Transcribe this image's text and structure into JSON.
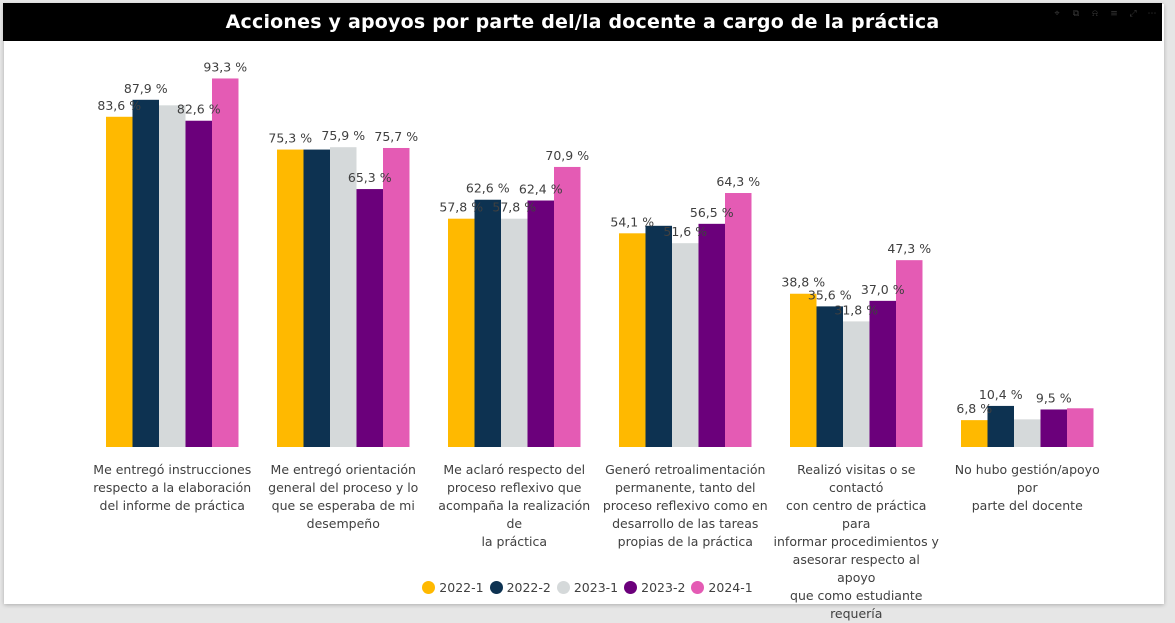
{
  "chart_data": {
    "type": "bar",
    "title": "Acciones y apoyos por parte del/la docente a cargo de la práctica",
    "categories": [
      "Me entregó instrucciones respecto a la elaboración del informe de práctica",
      "Me entregó orientación general del proceso y lo que se esperaba de mi desempeño",
      "Me aclaró respecto del proceso reflexivo que acompaña la realización de la práctica",
      "Generó retroalimentación permanente, tanto del proceso reflexivo como en desarrollo de las tareas propias de la práctica",
      "Realizó visitas o se contactó con centro de práctica para informar procedimientos y asesorar respecto al apoyo que como estudiante requería",
      "No hubo gestión/apoyo por parte del docente"
    ],
    "category_lines": [
      [
        "Me entregó instrucciones",
        "respecto a la elaboración",
        "del informe de práctica"
      ],
      [
        "Me entregó orientación",
        "general del proceso y lo",
        "que se esperaba de mi",
        "desempeño"
      ],
      [
        "Me aclaró respecto del",
        "proceso reflexivo que",
        "acompaña la realización de",
        "la práctica"
      ],
      [
        "Generó retroalimentación",
        "permanente, tanto del",
        "proceso reflexivo como en",
        "desarrollo de las tareas",
        "propias de la práctica"
      ],
      [
        "Realizó visitas o se contactó",
        "con centro de práctica para",
        "informar procedimientos y",
        "asesorar respecto al apoyo",
        "que como estudiante",
        "requería"
      ],
      [
        "No hubo gestión/apoyo por",
        "parte del docente"
      ]
    ],
    "series": [
      {
        "name": "2022-1",
        "color": "#FFB900",
        "values": [
          83.6,
          75.3,
          57.8,
          54.1,
          38.8,
          6.8
        ],
        "labels": [
          "83,6 %",
          "75,3 %",
          "57,8 %",
          "54,1 %",
          "38,8 %",
          "6,8 %"
        ]
      },
      {
        "name": "2022-2",
        "color": "#0D3251",
        "values": [
          87.9,
          75.3,
          62.6,
          56.0,
          35.6,
          10.4
        ],
        "labels": [
          "87,9 %",
          "",
          "62,6 %",
          "",
          "35,6 %",
          "10,4 %"
        ]
      },
      {
        "name": "2023-1",
        "color": "#D5D9DA",
        "values": [
          86.5,
          75.9,
          57.8,
          51.6,
          31.8,
          7.0
        ],
        "labels": [
          "",
          "75,9 %",
          "57,8 %",
          "51,6 %",
          "31,8 %",
          ""
        ]
      },
      {
        "name": "2023-2",
        "color": "#6B007B",
        "values": [
          82.6,
          65.3,
          62.4,
          56.5,
          37.0,
          9.5
        ],
        "labels": [
          "82,6 %",
          "65,3 %",
          "62,4 %",
          "56,5 %",
          "37,0 %",
          "9,5 %"
        ]
      },
      {
        "name": "2024-1",
        "color": "#E45BB4",
        "values": [
          93.3,
          75.7,
          70.9,
          64.3,
          47.3,
          9.8
        ],
        "labels": [
          "93,3 %",
          "75,7 %",
          "70,9 %",
          "64,3 %",
          "47,3 %",
          ""
        ]
      }
    ],
    "ylim": [
      0,
      100
    ],
    "legend_position": "bottom-center",
    "grid": false
  },
  "toolbar_icons": [
    "pin-icon",
    "copy-icon",
    "bell-icon",
    "filter-icon",
    "focus-icon",
    "more-icon"
  ],
  "toolbar_glyphs": [
    "⌖",
    "⧉",
    "⍾",
    "≡",
    "⤢",
    "⋯"
  ]
}
